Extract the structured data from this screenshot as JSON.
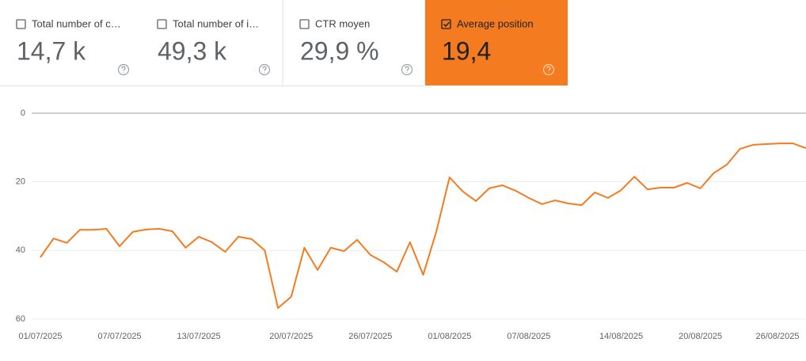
{
  "cards": [
    {
      "title": "Total number of c…",
      "value": "14,7 k",
      "selected": false
    },
    {
      "title": "Total number of i…",
      "value": "49,3 k",
      "selected": false
    },
    {
      "title": "CTR moyen",
      "value": "29,9 %",
      "selected": false
    },
    {
      "title": "Average position",
      "value": "19,4",
      "selected": true
    }
  ],
  "chart_data": {
    "type": "line",
    "categories": [
      "01/07/2025",
      null,
      null,
      null,
      null,
      null,
      "07/07/2025",
      null,
      null,
      null,
      null,
      null,
      "13/07/2025",
      null,
      null,
      null,
      null,
      null,
      null,
      "20/07/2025",
      null,
      null,
      null,
      null,
      null,
      "26/07/2025",
      null,
      null,
      null,
      null,
      null,
      "01/08/2025",
      null,
      null,
      null,
      null,
      null,
      "07/08/2025",
      null,
      null,
      null,
      null,
      null,
      null,
      "14/08/2025",
      null,
      null,
      null,
      null,
      null,
      "20/08/2025",
      null,
      null,
      null,
      null,
      null,
      "26/08/2025",
      null,
      null
    ],
    "series": [
      {
        "name": "Average position",
        "color": "#f47b20",
        "values": [
          42,
          36.5,
          37.8,
          34,
          34,
          33.7,
          38.8,
          34.6,
          33.9,
          33.7,
          34.4,
          39.2,
          36,
          37.6,
          40.4,
          36,
          36.7,
          40,
          56.8,
          53.5,
          39.2,
          45.7,
          39.2,
          40.2,
          36.9,
          41.3,
          43.4,
          46.2,
          37.6,
          47.1,
          34.4,
          18.7,
          22.8,
          25.6,
          21.9,
          21,
          22.6,
          24.7,
          26.5,
          25.4,
          26.3,
          26.8,
          23.1,
          24.7,
          22.4,
          18.5,
          22.2,
          21.7,
          21.7,
          20.3,
          21.9,
          17.5,
          15,
          10.4,
          9.2,
          9,
          8.8,
          8.8,
          10.2
        ]
      }
    ],
    "ylim": [
      0,
      60
    ],
    "yticks": [
      0,
      20,
      40,
      60
    ],
    "y_inverted": true,
    "grid": true
  }
}
